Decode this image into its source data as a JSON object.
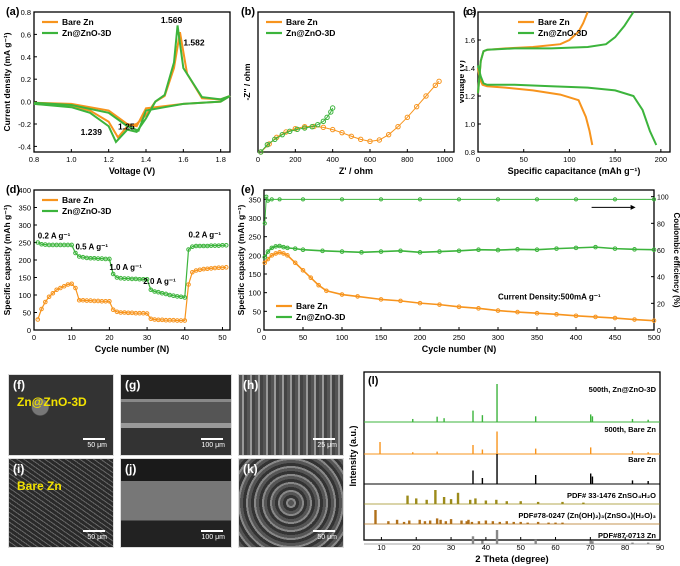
{
  "colors": {
    "orange": "#f7941d",
    "green": "#3cb43c",
    "olive": "#9c8b1a",
    "brown": "#b0701a",
    "black": "#000000",
    "gray": "#888888"
  },
  "chart_data": [
    {
      "id": "a",
      "panel_label": "(a)",
      "type": "line",
      "xlabel": "Voltage (V)",
      "ylabel": "Current density (mA g⁻¹)",
      "xlim": [
        0.8,
        1.85
      ],
      "ylim": [
        -0.45,
        0.8
      ],
      "xticks": [
        "0.8",
        "1.0",
        "1.2",
        "1.4",
        "1.6",
        "1.8"
      ],
      "yticks": [
        "-0.4",
        "-0.2",
        "0.0",
        "0.2",
        "0.4",
        "0.6",
        "0.8"
      ],
      "legend": [
        "Bare Zn",
        "Zn@ZnO-3D"
      ],
      "legend_position": "top-left",
      "annotations": [
        "1.569",
        "1.582",
        "1.239",
        "1.25"
      ],
      "series": [
        {
          "name": "Bare Zn",
          "x": [
            0.8,
            1.0,
            1.1,
            1.2,
            1.25,
            1.3,
            1.35,
            1.4,
            1.45,
            1.5,
            1.55,
            1.582,
            1.62,
            1.7,
            1.8,
            1.85,
            1.8,
            1.7,
            1.6,
            1.5,
            1.4,
            1.35,
            1.3,
            1.2,
            1.0,
            0.8
          ],
          "y": [
            -0.02,
            -0.04,
            -0.08,
            -0.18,
            -0.32,
            -0.22,
            -0.2,
            -0.12,
            0.0,
            0.05,
            0.3,
            0.62,
            0.25,
            0.03,
            0.02,
            0.05,
            0.0,
            -0.01,
            -0.02,
            -0.04,
            -0.06,
            -0.22,
            -0.2,
            -0.08,
            -0.02,
            -0.01
          ]
        },
        {
          "name": "Zn@ZnO-3D",
          "x": [
            0.8,
            1.0,
            1.1,
            1.2,
            1.239,
            1.3,
            1.35,
            1.4,
            1.45,
            1.5,
            1.55,
            1.569,
            1.6,
            1.7,
            1.8,
            1.85,
            1.8,
            1.7,
            1.6,
            1.5,
            1.4,
            1.36,
            1.3,
            1.2,
            1.0,
            0.8
          ],
          "y": [
            -0.02,
            -0.05,
            -0.1,
            -0.22,
            -0.36,
            -0.25,
            -0.27,
            -0.15,
            0.0,
            0.06,
            0.35,
            0.68,
            0.3,
            0.04,
            0.02,
            0.05,
            0.0,
            -0.01,
            -0.02,
            -0.05,
            -0.08,
            -0.26,
            -0.22,
            -0.1,
            -0.03,
            -0.01
          ]
        }
      ]
    },
    {
      "id": "b",
      "panel_label": "(b)",
      "type": "scatter",
      "xlabel": "Z' / ohm",
      "ylabel": "-Z'' / ohm",
      "xlim": [
        0,
        1050
      ],
      "ylim": [
        0,
        1050
      ],
      "xticks": [
        "0",
        "200",
        "400",
        "600",
        "800",
        "1000"
      ],
      "yticks": [
        "0",
        "200",
        "400",
        "600",
        "800",
        "1000"
      ],
      "legend": [
        "Bare Zn",
        "Zn@ZnO-3D"
      ],
      "legend_position": "top-left",
      "series": [
        {
          "name": "Bare Zn",
          "x": [
            15,
            60,
            100,
            150,
            200,
            250,
            300,
            350,
            400,
            450,
            500,
            550,
            600,
            650,
            700,
            750,
            800,
            850,
            900,
            950,
            970
          ],
          "y": [
            0,
            60,
            110,
            150,
            175,
            190,
            192,
            185,
            168,
            145,
            118,
            95,
            80,
            90,
            130,
            190,
            260,
            340,
            420,
            500,
            530
          ]
        },
        {
          "name": "Zn@ZnO-3D",
          "x": [
            15,
            50,
            90,
            130,
            170,
            210,
            250,
            290,
            320,
            350,
            370,
            390,
            400
          ],
          "y": [
            0,
            55,
            95,
            130,
            155,
            170,
            180,
            190,
            205,
            230,
            260,
            300,
            330
          ]
        }
      ]
    },
    {
      "id": "c",
      "panel_label": "(c)",
      "type": "line",
      "xlabel": "Specific capacitance  (mAh g⁻¹)",
      "ylabel": "Voltage (V)",
      "xlim": [
        0,
        210
      ],
      "ylim": [
        0.8,
        1.8
      ],
      "xticks": [
        "0",
        "50",
        "100",
        "150",
        "200"
      ],
      "yticks": [
        "0.8",
        "1.0",
        "1.2",
        "1.4",
        "1.6",
        "1.8"
      ],
      "legend": [
        "Bare Zn",
        "Zn@ZnO-3D"
      ],
      "legend_position": "top-left",
      "series": [
        {
          "name": "Bare Zn",
          "x": [
            0,
            2,
            5,
            10,
            30,
            60,
            90,
            110,
            118,
            122,
            125,
            0,
            3,
            6,
            10,
            30,
            60,
            90,
            100,
            110,
            115,
            120
          ],
          "y": [
            1.4,
            1.32,
            1.28,
            1.27,
            1.26,
            1.24,
            1.21,
            1.17,
            1.05,
            0.95,
            0.85,
            1.22,
            1.45,
            1.52,
            1.53,
            1.54,
            1.55,
            1.57,
            1.6,
            1.66,
            1.72,
            1.8
          ]
        },
        {
          "name": "Zn@ZnO-3D",
          "x": [
            0,
            3,
            6,
            10,
            40,
            80,
            120,
            150,
            170,
            180,
            188,
            195,
            0,
            3,
            6,
            10,
            40,
            80,
            120,
            140,
            150,
            160,
            170
          ],
          "y": [
            1.42,
            1.34,
            1.29,
            1.28,
            1.28,
            1.27,
            1.26,
            1.24,
            1.2,
            1.1,
            0.95,
            0.85,
            1.22,
            1.45,
            1.52,
            1.53,
            1.54,
            1.54,
            1.55,
            1.57,
            1.62,
            1.7,
            1.8
          ]
        }
      ]
    },
    {
      "id": "d",
      "panel_label": "(d)",
      "type": "scatter",
      "xlabel": "Cycle number (N)",
      "ylabel": "Specific capacity (mAh g⁻¹)",
      "xlim": [
        0,
        52
      ],
      "ylim": [
        0,
        400
      ],
      "xticks": [
        "0",
        "10",
        "20",
        "30",
        "40",
        "50"
      ],
      "yticks": [
        "0",
        "50",
        "100",
        "150",
        "200",
        "250",
        "300",
        "350",
        "400"
      ],
      "legend": [
        "Bare Zn",
        "Zn@ZnO-3D"
      ],
      "legend_position": "top-left",
      "annotations": [
        "0.2 A g⁻¹",
        "0.5 A g⁻¹",
        "1.0 A g⁻¹",
        "2.0 A g⁻¹",
        "0.2 A g⁻¹"
      ],
      "series": [
        {
          "name": "Bare Zn",
          "x": [
            1,
            2,
            3,
            4,
            5,
            6,
            7,
            8,
            9,
            10,
            11,
            12,
            13,
            14,
            15,
            16,
            17,
            18,
            19,
            20,
            21,
            22,
            23,
            24,
            25,
            26,
            27,
            28,
            29,
            30,
            31,
            32,
            33,
            34,
            35,
            36,
            37,
            38,
            39,
            40,
            41,
            42,
            43,
            44,
            45,
            46,
            47,
            48,
            49,
            50,
            51
          ],
          "y": [
            30,
            60,
            80,
            95,
            105,
            115,
            120,
            125,
            130,
            132,
            120,
            85,
            85,
            84,
            84,
            83,
            83,
            82,
            82,
            82,
            58,
            52,
            50,
            50,
            49,
            49,
            48,
            48,
            48,
            47,
            32,
            30,
            29,
            29,
            28,
            28,
            28,
            27,
            27,
            27,
            130,
            165,
            170,
            172,
            174,
            175,
            176,
            177,
            178,
            178,
            179
          ]
        },
        {
          "name": "Zn@ZnO-3D",
          "x": [
            1,
            2,
            3,
            4,
            5,
            6,
            7,
            8,
            9,
            10,
            11,
            12,
            13,
            14,
            15,
            16,
            17,
            18,
            19,
            20,
            21,
            22,
            23,
            24,
            25,
            26,
            27,
            28,
            29,
            30,
            31,
            32,
            33,
            34,
            35,
            36,
            37,
            38,
            39,
            40,
            41,
            42,
            43,
            44,
            45,
            46,
            47,
            48,
            49,
            50,
            51
          ],
          "y": [
            250,
            245,
            244,
            243,
            243,
            243,
            243,
            243,
            243,
            243,
            220,
            210,
            208,
            206,
            205,
            205,
            204,
            204,
            203,
            203,
            160,
            150,
            148,
            147,
            147,
            146,
            146,
            145,
            145,
            145,
            115,
            110,
            108,
            105,
            103,
            100,
            98,
            96,
            95,
            93,
            230,
            238,
            240,
            240,
            240,
            240,
            241,
            241,
            241,
            242,
            242
          ]
        }
      ]
    },
    {
      "id": "e",
      "panel_label": "(e)",
      "type": "scatter",
      "xlabel": "Cycle number (N)",
      "ylabel": "Specific capacity (mAh g⁻¹)",
      "y2label": "Coulombic efficiency (%)",
      "xlim": [
        0,
        500
      ],
      "ylim": [
        0,
        375
      ],
      "y2lim": [
        0,
        105
      ],
      "xticks": [
        "0",
        "50",
        "100",
        "150",
        "200",
        "250",
        "300",
        "350",
        "400",
        "450",
        "500"
      ],
      "yticks": [
        "0",
        "50",
        "100",
        "150",
        "200",
        "250",
        "300",
        "350"
      ],
      "y2ticks": [
        "0",
        "20",
        "40",
        "60",
        "80",
        "100"
      ],
      "legend": [
        "Bare Zn",
        "Zn@ZnO-3D"
      ],
      "legend_position": "lower-left",
      "annotations": [
        "Current Density:500mA g⁻¹"
      ],
      "series": [
        {
          "name": "Bare Zn",
          "x": [
            1,
            5,
            10,
            15,
            20,
            25,
            30,
            40,
            50,
            60,
            70,
            80,
            100,
            120,
            150,
            175,
            200,
            225,
            250,
            275,
            300,
            325,
            350,
            375,
            400,
            425,
            450,
            475,
            500
          ],
          "y": [
            180,
            190,
            200,
            205,
            208,
            205,
            200,
            180,
            160,
            140,
            120,
            105,
            95,
            90,
            82,
            78,
            72,
            68,
            62,
            58,
            52,
            48,
            45,
            42,
            38,
            35,
            32,
            28,
            25
          ]
        },
        {
          "name": "Zn@ZnO-3D",
          "x": [
            1,
            5,
            10,
            15,
            20,
            25,
            30,
            40,
            50,
            75,
            100,
            125,
            150,
            175,
            200,
            225,
            250,
            275,
            300,
            325,
            350,
            375,
            400,
            425,
            450,
            475,
            500
          ],
          "y": [
            195,
            210,
            220,
            224,
            225,
            222,
            220,
            218,
            215,
            212,
            210,
            208,
            210,
            212,
            208,
            210,
            212,
            215,
            214,
            216,
            215,
            218,
            220,
            222,
            218,
            216,
            215
          ]
        },
        {
          "name": "Coulombic efficiency",
          "x": [
            1,
            3,
            5,
            10,
            20,
            50,
            100,
            150,
            200,
            250,
            300,
            350,
            400,
            450,
            500
          ],
          "y": [
            80,
            100,
            97,
            98,
            98,
            98,
            98,
            98,
            98,
            98,
            98,
            98,
            98,
            98,
            98
          ]
        }
      ]
    },
    {
      "id": "l",
      "panel_label": "(l)",
      "type": "bar",
      "xlabel": "2 Theta (degree)",
      "ylabel": "Intensity (a.u.)",
      "xlim": [
        5,
        90
      ],
      "xticks": [
        "10",
        "20",
        "30",
        "40",
        "50",
        "60",
        "70",
        "80",
        "90"
      ],
      "pattern_labels": [
        "500th, Zn@ZnO-3D",
        "500th, Bare Zn",
        "Bare Zn",
        "PDF# 33-1476 ZnSO₄H₂O",
        "PDF#78-0247 (Zn(OH)₂)₃(ZnSO₄)(H₂O)₃",
        "PDF#87-0713 Zn"
      ],
      "series": [
        {
          "name": "500th, Zn@ZnO-3D",
          "x": [
            19,
            26,
            28,
            36.3,
            39,
            43.2,
            54.3,
            70.1,
            70.6,
            82.1,
            86.6
          ],
          "y": [
            8,
            14,
            10,
            30,
            18,
            100,
            15,
            20,
            15,
            8,
            6
          ]
        },
        {
          "name": "500th, Bare Zn",
          "x": [
            9.6,
            19,
            26,
            36.3,
            39,
            43.2,
            54.3,
            70.1,
            82.1,
            86.6
          ],
          "y": [
            40,
            6,
            8,
            30,
            15,
            75,
            18,
            22,
            10,
            6
          ]
        },
        {
          "name": "Bare Zn",
          "x": [
            36.3,
            39,
            43.2,
            54.3,
            70.1,
            70.6,
            82.1,
            86.6
          ],
          "y": [
            45,
            20,
            100,
            30,
            35,
            25,
            12,
            10
          ]
        },
        {
          "name": "PDF# 33-1476 ZnSO₄H₂O",
          "x": [
            17.5,
            20,
            23,
            25.5,
            28,
            30,
            32,
            35.5,
            37,
            40,
            43,
            46,
            50,
            55,
            62,
            68
          ],
          "y": [
            60,
            40,
            30,
            100,
            50,
            35,
            80,
            30,
            40,
            25,
            30,
            20,
            20,
            15,
            15,
            10
          ]
        },
        {
          "name": "PDF#78-0247 (Zn(OH)₂)₃(ZnSO₄)(H₂O)₃",
          "x": [
            8.3,
            12,
            14.5,
            16.5,
            18,
            21,
            22.5,
            24,
            26,
            27,
            28.5,
            30,
            33,
            34.5,
            35,
            36,
            38,
            40,
            42,
            44,
            46,
            48,
            50,
            52,
            55,
            58,
            60,
            62
          ],
          "y": [
            100,
            20,
            30,
            15,
            25,
            30,
            20,
            25,
            40,
            30,
            20,
            35,
            25,
            20,
            30,
            15,
            20,
            25,
            20,
            15,
            20,
            15,
            15,
            10,
            15,
            10,
            10,
            10
          ]
        },
        {
          "name": "PDF#87-0713 Zn",
          "x": [
            36.3,
            39,
            43.2,
            54.3,
            70.1,
            70.6,
            82.1,
            86.6
          ],
          "y": [
            55,
            25,
            100,
            30,
            25,
            20,
            10,
            10
          ]
        }
      ]
    }
  ],
  "micrographs": [
    {
      "id": "f",
      "label": "(f)",
      "tag": "Zn@ZnO-3D",
      "scale": "50 μm"
    },
    {
      "id": "g",
      "label": "(g)",
      "tag": "",
      "scale": "100 μm"
    },
    {
      "id": "h",
      "label": "(h)",
      "tag": "",
      "scale": "25 μm"
    },
    {
      "id": "i",
      "label": "(i)",
      "tag": "Bare Zn",
      "scale": "50 μm"
    },
    {
      "id": "j",
      "label": "(j)",
      "tag": "",
      "scale": "100 μm"
    },
    {
      "id": "k",
      "label": "(k)",
      "tag": "",
      "scale": "50 μm"
    }
  ]
}
